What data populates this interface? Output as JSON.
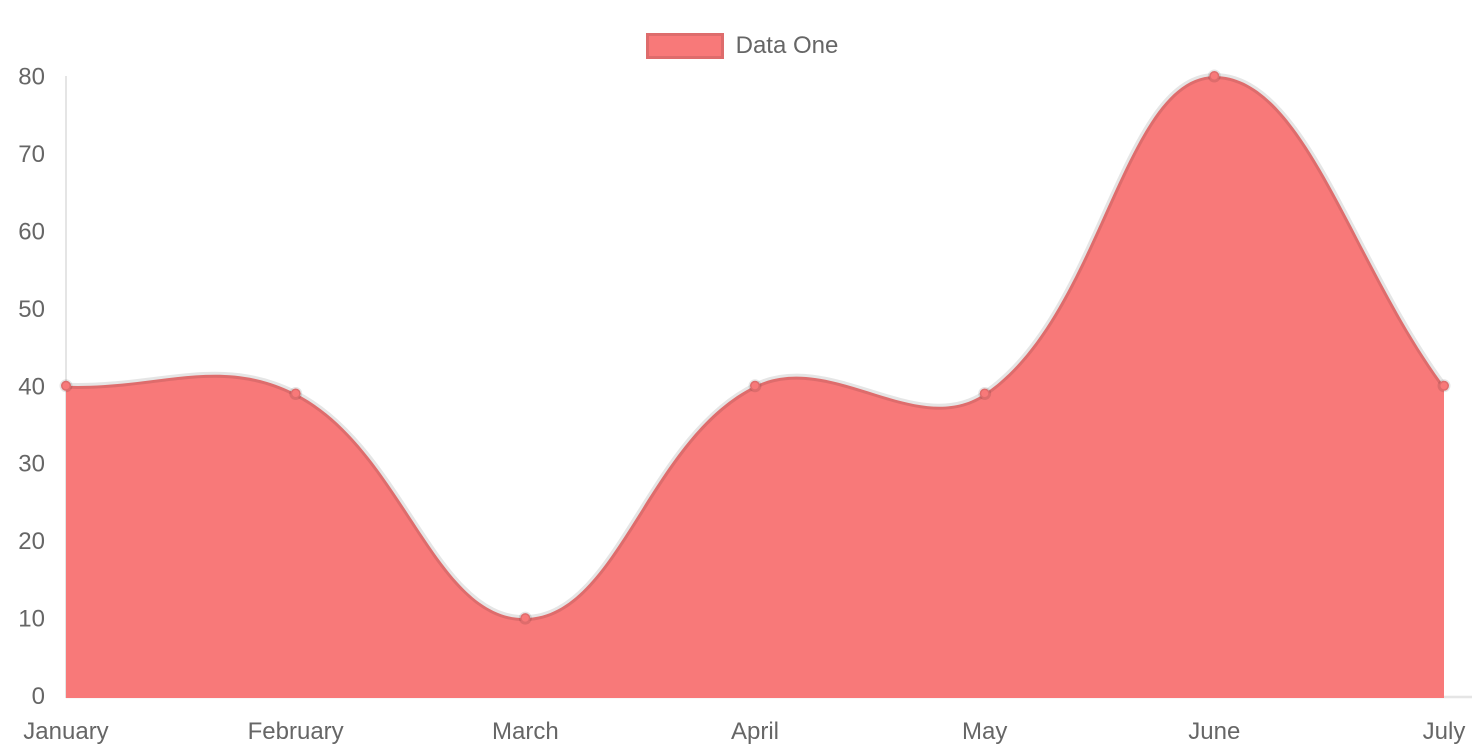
{
  "chart_data": {
    "type": "area",
    "title": "",
    "categories": [
      "January",
      "February",
      "March",
      "April",
      "May",
      "June",
      "July"
    ],
    "series": [
      {
        "name": "Data One",
        "values": [
          40,
          39,
          10,
          40,
          39,
          80,
          40
        ]
      }
    ],
    "ylim": [
      0,
      80
    ],
    "yticks": [
      0,
      10,
      20,
      30,
      40,
      50,
      60,
      70,
      80
    ],
    "grid": false,
    "legend_position": "top",
    "line_tension": 0.4,
    "colors": {
      "fill": "#f87979",
      "line_stroke": "rgba(0,0,0,0.1)",
      "point_fill": "#f87979",
      "point_border": "rgba(0,0,0,0.1)",
      "axis_line": "rgba(0,0,0,0.1)",
      "tick_text": "#666666"
    }
  }
}
